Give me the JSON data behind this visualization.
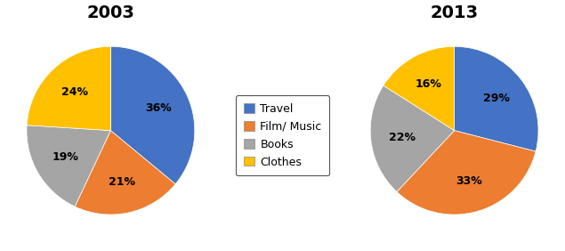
{
  "title_2003": "2003",
  "title_2013": "2013",
  "categories": [
    "Travel",
    "Film/ Music",
    "Books",
    "Clothes"
  ],
  "values_2003": [
    36,
    21,
    19,
    24
  ],
  "values_2013": [
    29,
    33,
    22,
    16
  ],
  "colors": [
    "#4472C4",
    "#ED7D31",
    "#A5A5A5",
    "#FFC000"
  ],
  "labels_2003": [
    "36%",
    "21%",
    "19%",
    "24%"
  ],
  "labels_2013": [
    "29%",
    "33%",
    "22%",
    "16%"
  ],
  "startangle_2003": 90,
  "startangle_2013": 90,
  "background_color": "#FFFFFF",
  "title_fontsize": 14,
  "label_fontsize": 9,
  "legend_fontsize": 9
}
